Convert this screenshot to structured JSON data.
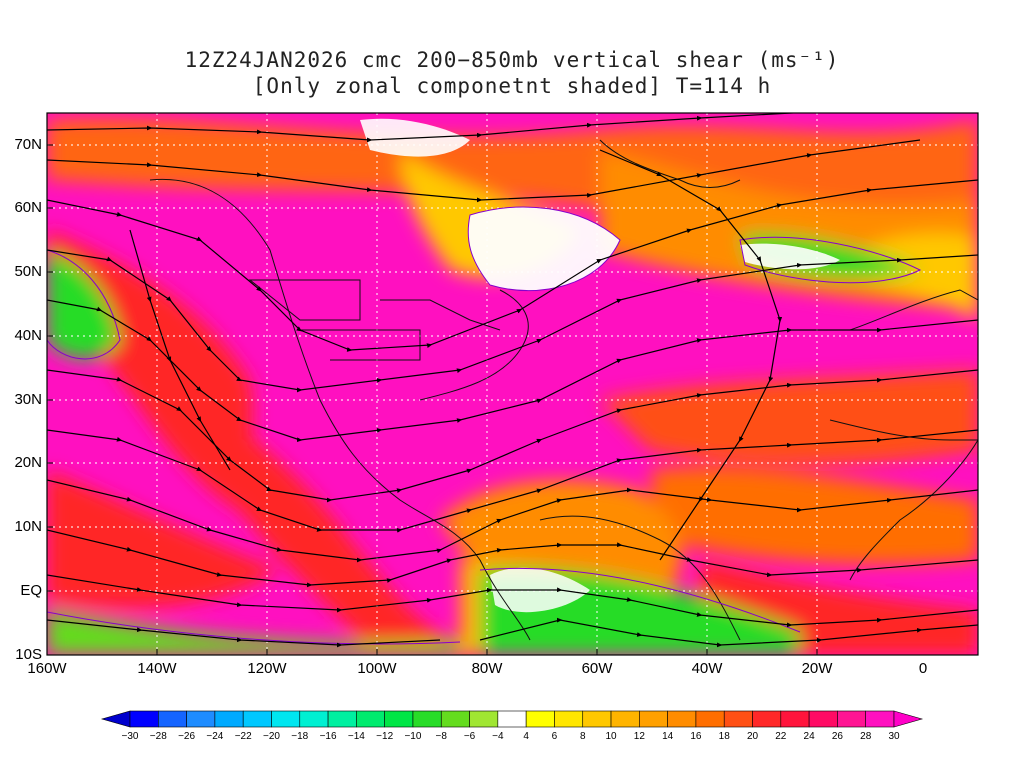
{
  "title": {
    "line1": "12Z24JAN2026 cmc 200−850mb vertical shear (ms⁻¹)",
    "line2": "[Only zonal componetnt shaded] T=114 h"
  },
  "map": {
    "lat_labels": [
      "70N",
      "60N",
      "50N",
      "40N",
      "30N",
      "20N",
      "10N",
      "EQ",
      "10S"
    ],
    "lon_labels": [
      "160W",
      "140W",
      "120W",
      "100W",
      "80W",
      "60W",
      "40W",
      "20W",
      "0"
    ]
  },
  "colorbar": {
    "ticks": [
      "-30",
      "-28",
      "-26",
      "-24",
      "-22",
      "-20",
      "-18",
      "-16",
      "-14",
      "-12",
      "-10",
      "-8",
      "-6",
      "-4",
      "4",
      "6",
      "8",
      "10",
      "12",
      "14",
      "16",
      "18",
      "20",
      "22",
      "24",
      "26",
      "28",
      "30"
    ],
    "colors": [
      "#0000ff",
      "#1464ff",
      "#1e8cff",
      "#00aaff",
      "#00c8ff",
      "#00e6f0",
      "#00f0d2",
      "#00f0a0",
      "#00eb6e",
      "#00e646",
      "#28dc28",
      "#64dc1e",
      "#a0e632",
      "#ffffff",
      "#ffff00",
      "#ffe600",
      "#ffc800",
      "#ffb400",
      "#ffa000",
      "#ff8c00",
      "#ff6e00",
      "#ff5014",
      "#ff2828",
      "#ff143c",
      "#ff0a64",
      "#ff1493",
      "#ff10c0"
    ],
    "left_arrow_color": "#0000cd",
    "right_arrow_color": "#ff00c8"
  }
}
